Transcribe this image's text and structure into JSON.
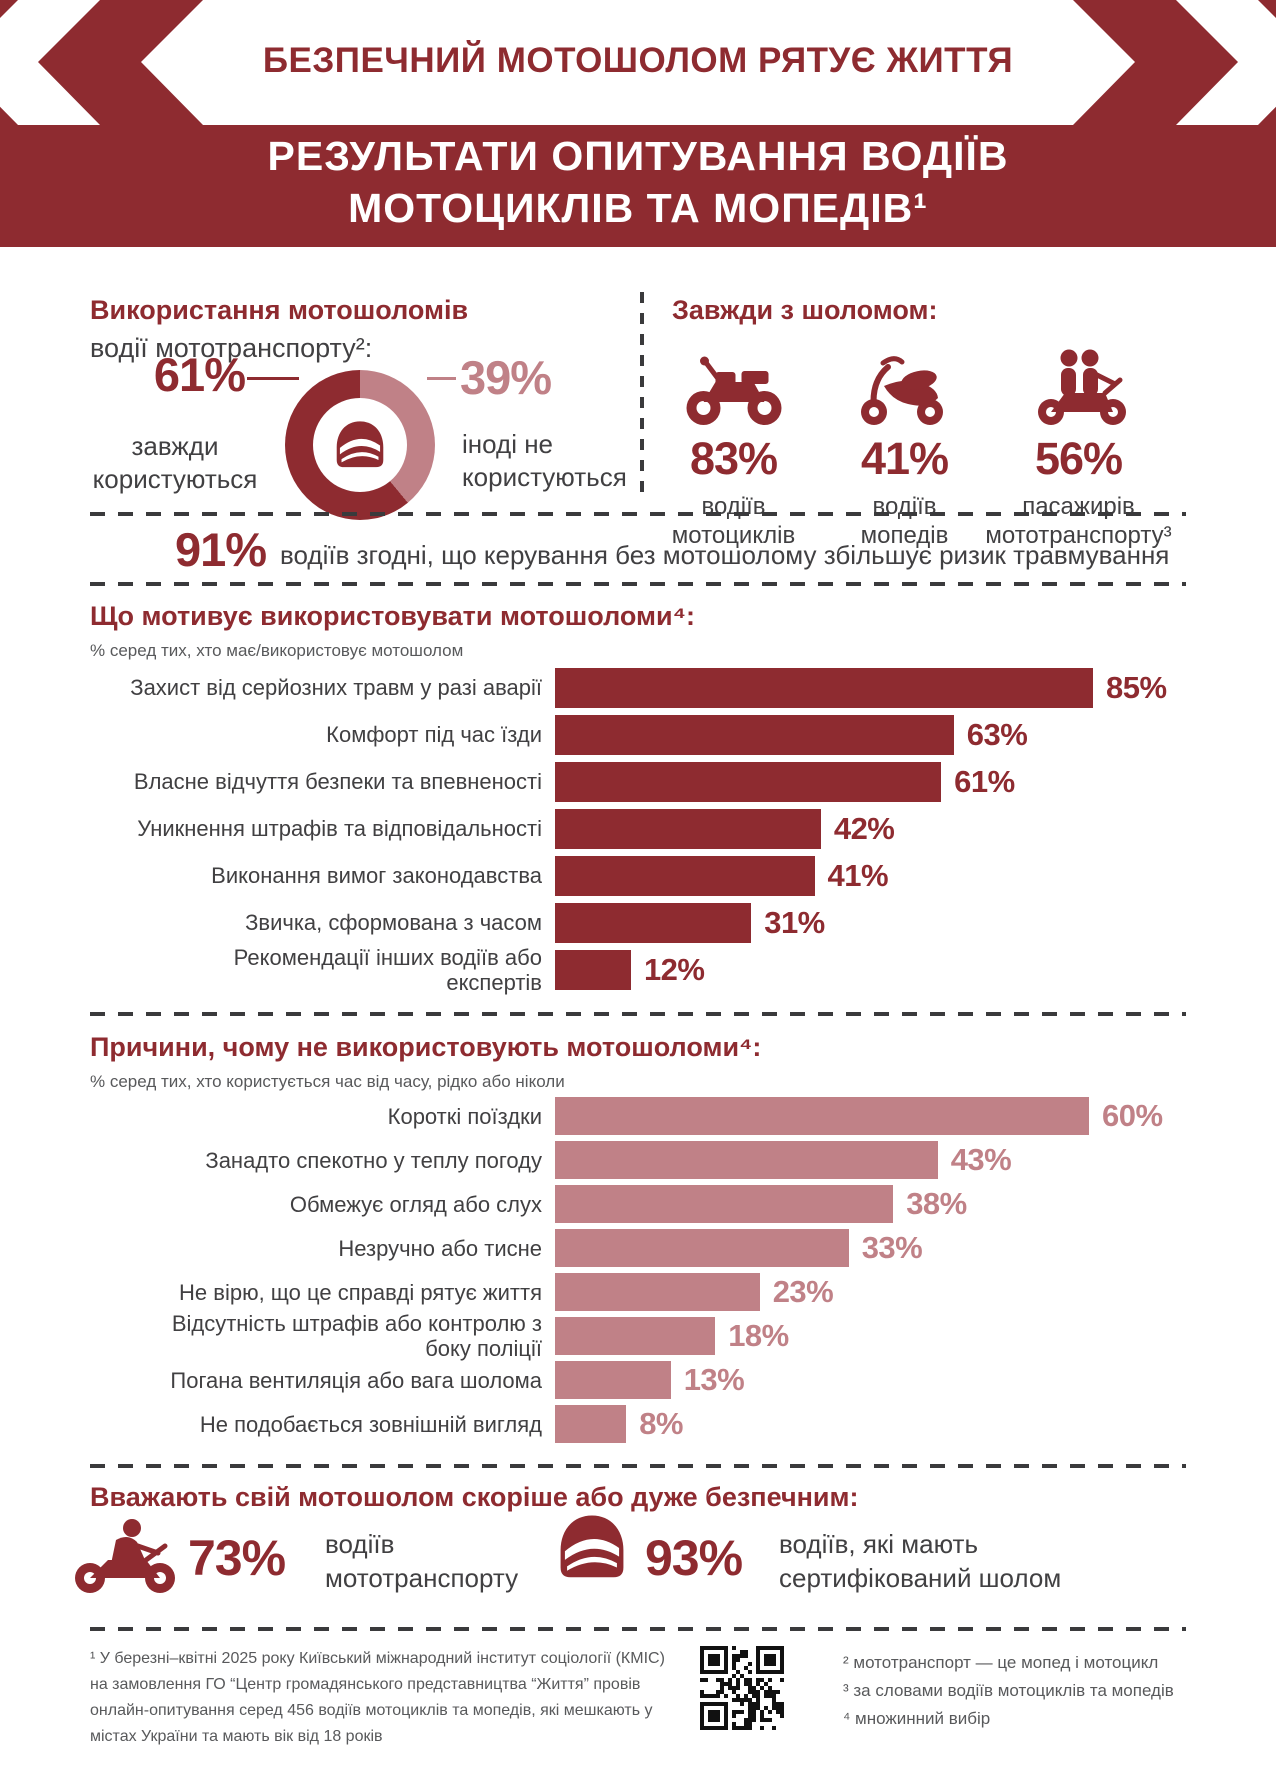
{
  "colors": {
    "maroon": "#8E2B30",
    "rose": "#C08187",
    "text": "#414042",
    "muted": "#58595B",
    "dash": "#3A3A3C"
  },
  "header": {
    "banner_title": "БЕЗПЕЧНИЙ МОТОШОЛОМ РЯТУЄ ЖИТТЯ",
    "subtitle_line1": "РЕЗУЛЬТАТИ ОПИТУВАННЯ ВОДІЇВ",
    "subtitle_line2": "МОТОЦИКЛІВ ТА МОПЕДІВ¹"
  },
  "usage": {
    "left": {
      "value": "61%",
      "label": "завжди\nкористуються"
    },
    "right": {
      "value": "39%",
      "label": "іноді не\nкористуються"
    }
  },
  "always_helmet": {
    "title": "Завжди з шоломом:",
    "items": [
      {
        "icon": "motorcycle-icon",
        "value": "83%",
        "label": "водіїв\nмотоциклів"
      },
      {
        "icon": "moped-icon",
        "value": "41%",
        "label": "водіїв\nмопедів"
      },
      {
        "icon": "passengers-icon",
        "value": "56%",
        "label": "пасажирів\nмототранспорту³"
      }
    ]
  },
  "agree": {
    "value": "91%",
    "text": "водіїв згодні, що керування без мотошолому збільшує ризик травмування"
  },
  "chart_data": [
    {
      "type": "pie",
      "title": "Використання мотошоломів",
      "subtitle": "водії мототранспорту²:",
      "labels": [
        "завжди користуються",
        "іноді не користуються"
      ],
      "values": [
        61,
        39
      ],
      "colors": [
        "#8E2B30",
        "#C08187"
      ],
      "center_icon": "helmet-icon",
      "start_angle_deg": 0,
      "direction": "clockwise"
    },
    {
      "type": "bar",
      "orientation": "horizontal",
      "title": "Що мотивує використовувати мотошоломи⁴:",
      "subtitle": "% серед тих, хто має/використовує мотошолом",
      "categories": [
        "Захист від серйозних травм у разі аварії",
        "Комфорт під час їзди",
        "Власне відчуття безпеки та впевненості",
        "Уникнення штрафів та відповідальності",
        "Виконання вимог законодавства",
        "Звичка, сформована з часом",
        "Рекомендації інших водіїв або\nекспертів"
      ],
      "values": [
        85,
        63,
        61,
        42,
        41,
        31,
        12
      ],
      "unit": "%",
      "bar_color": "#8E2B30",
      "xlim": [
        0,
        85
      ],
      "grid": false,
      "legend": false
    },
    {
      "type": "bar",
      "orientation": "horizontal",
      "title": "Причини, чому не використовують мотошоломи⁴:",
      "subtitle": "% серед тих, хто користується час від часу, рідко або ніколи",
      "categories": [
        "Короткі поїздки",
        "Занадто спекотно у теплу погоду",
        "Обмежує огляд або слух",
        "Незручно або тисне",
        "Не вірю, що це справді рятує життя",
        "Відсутність штрафів або контролю з\nбоку поліції",
        "Погана вентиляція або вага шолома",
        "Не подобається зовнішній вигляд"
      ],
      "values": [
        60,
        43,
        38,
        33,
        23,
        18,
        13,
        8
      ],
      "unit": "%",
      "bar_color": "#C08187",
      "xlim": [
        0,
        60
      ],
      "grid": false,
      "legend": false
    }
  ],
  "safety": {
    "title": "Вважають свій мотошолом скоріше або дуже безпечним:",
    "items": [
      {
        "icon": "rider-icon",
        "value": "73%",
        "label": "водіїв\nмототранспорту"
      },
      {
        "icon": "helmet-icon",
        "value": "93%",
        "label": "водіїв, які мають\nсертифікований шолом"
      }
    ]
  },
  "footnotes": {
    "n1": "¹ У березні–квітні 2025 року Київський міжнародний інститут соціології (КМІС)\nна замовлення ГО “Центр громадянського представництва “Життя” провів\nонлайн-опитування серед 456 водіїв мотоциклів та мопедів, які мешкають у\nмістах України та мають вік від 18 років",
    "n2": "² мототранспорт — це мопед і мотоцикл",
    "n3": "³ за словами водіїв мотоциклів та мопедів",
    "n4": "⁴ множинний вибір"
  }
}
